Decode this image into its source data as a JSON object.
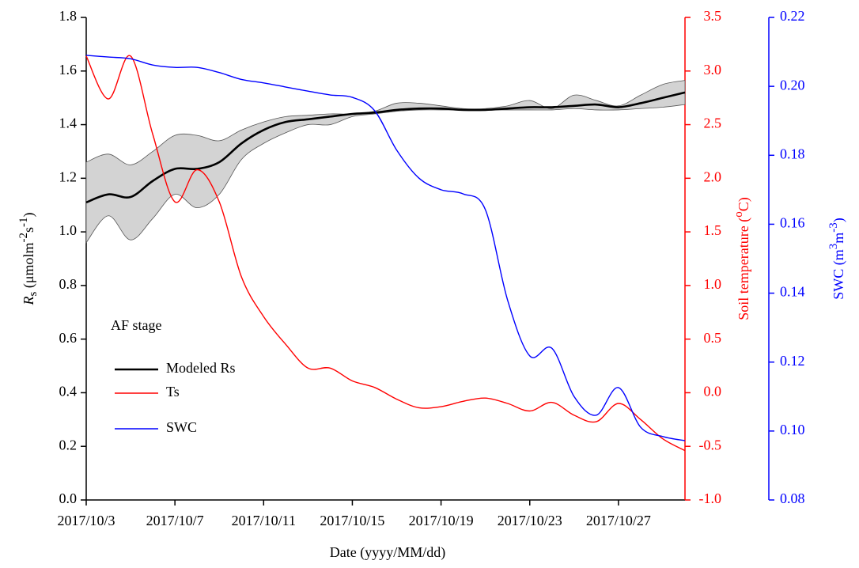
{
  "chart_data": {
    "type": "line",
    "x": [
      "2017/10/3",
      "2017/10/4",
      "2017/10/5",
      "2017/10/6",
      "2017/10/7",
      "2017/10/8",
      "2017/10/9",
      "2017/10/10",
      "2017/10/11",
      "2017/10/12",
      "2017/10/13",
      "2017/10/14",
      "2017/10/15",
      "2017/10/16",
      "2017/10/17",
      "2017/10/18",
      "2017/10/19",
      "2017/10/20",
      "2017/10/21",
      "2017/10/22",
      "2017/10/23",
      "2017/10/24",
      "2017/10/25",
      "2017/10/26",
      "2017/10/27",
      "2017/10/28",
      "2017/10/29",
      "2017/10/30"
    ],
    "xlim": [
      "2017/10/3",
      "2017/10/30"
    ],
    "xticks": [
      "2017/10/3",
      "2017/10/7",
      "2017/10/11",
      "2017/10/15",
      "2017/10/19",
      "2017/10/23",
      "2017/10/27"
    ],
    "xlabel": "Date (yyyy/MM/dd)",
    "ylabel": [
      "R",
      "s",
      " (μmolm",
      "-2",
      "s",
      "-1",
      ")"
    ],
    "y2label": [
      "Soil temperature (",
      "o",
      "C)"
    ],
    "y3label": [
      "SWC (m",
      "3",
      "m",
      "-3",
      ")"
    ],
    "ylim": [
      0,
      1.8
    ],
    "yticks": [
      {
        "value": 0,
        "label": "0.0"
      },
      0.2,
      0.4,
      0.6,
      0.8,
      {
        "value": 1,
        "label": "1.0"
      },
      1.2,
      1.4,
      1.6,
      1.8
    ],
    "y2lim": [
      -1,
      3.5
    ],
    "y2ticks": [
      {
        "value": -1,
        "label": "-1.0"
      },
      -0.5,
      {
        "value": 0,
        "label": "0.0"
      },
      0.5,
      {
        "value": 1,
        "label": "1.0"
      },
      1.5,
      {
        "value": 2,
        "label": "2.0"
      },
      2.5,
      {
        "value": 3,
        "label": "3.0"
      },
      3.5
    ],
    "y3lim": [
      0.08,
      0.22
    ],
    "y3ticks": [
      0.08,
      {
        "value": 0.1,
        "label": "0.10"
      },
      0.12,
      0.14,
      0.16,
      0.18,
      {
        "value": 0.2,
        "label": "0.20"
      },
      0.22
    ],
    "annotation": "AF stage",
    "series": [
      {
        "name": "Modeled Rs",
        "color": "#000000",
        "band_color": "#d3d3d3",
        "values": [
          1.11,
          1.14,
          1.13,
          1.19,
          1.235,
          1.235,
          1.26,
          1.33,
          1.38,
          1.41,
          1.42,
          1.43,
          1.44,
          1.445,
          1.455,
          1.46,
          1.46,
          1.455,
          1.455,
          1.46,
          1.465,
          1.465,
          1.47,
          1.475,
          1.465,
          1.48,
          1.5,
          1.52
        ],
        "upper": [
          1.26,
          1.29,
          1.25,
          1.3,
          1.36,
          1.36,
          1.34,
          1.38,
          1.41,
          1.43,
          1.435,
          1.44,
          1.44,
          1.45,
          1.48,
          1.48,
          1.47,
          1.46,
          1.46,
          1.47,
          1.49,
          1.46,
          1.51,
          1.49,
          1.47,
          1.51,
          1.55,
          1.565
        ],
        "lower": [
          0.96,
          1.06,
          0.97,
          1.05,
          1.14,
          1.09,
          1.14,
          1.27,
          1.33,
          1.37,
          1.4,
          1.4,
          1.43,
          1.44,
          1.45,
          1.455,
          1.455,
          1.455,
          1.455,
          1.455,
          1.455,
          1.455,
          1.46,
          1.455,
          1.455,
          1.46,
          1.465,
          1.475
        ]
      },
      {
        "name": "Ts",
        "color": "#ff0000",
        "axis": "y2",
        "values": [
          3.14,
          2.74,
          3.14,
          2.41,
          1.78,
          2.08,
          1.78,
          1.08,
          0.71,
          0.45,
          0.23,
          0.23,
          0.11,
          0.05,
          -0.06,
          -0.14,
          -0.13,
          -0.08,
          -0.05,
          -0.1,
          -0.17,
          -0.09,
          -0.21,
          -0.27,
          -0.1,
          -0.25,
          -0.43,
          -0.54
        ]
      },
      {
        "name": "SWC",
        "color": "#0000ff",
        "axis": "y3",
        "values": [
          0.209,
          0.2085,
          0.208,
          0.2062,
          0.2055,
          0.2055,
          0.204,
          0.202,
          0.201,
          0.1998,
          0.1986,
          0.1975,
          0.1968,
          0.193,
          0.1815,
          0.1734,
          0.17,
          0.1688,
          0.1642,
          0.138,
          0.1218,
          0.124,
          0.11,
          0.1046,
          0.1126,
          0.1011,
          0.0984,
          0.0972
        ]
      }
    ]
  }
}
